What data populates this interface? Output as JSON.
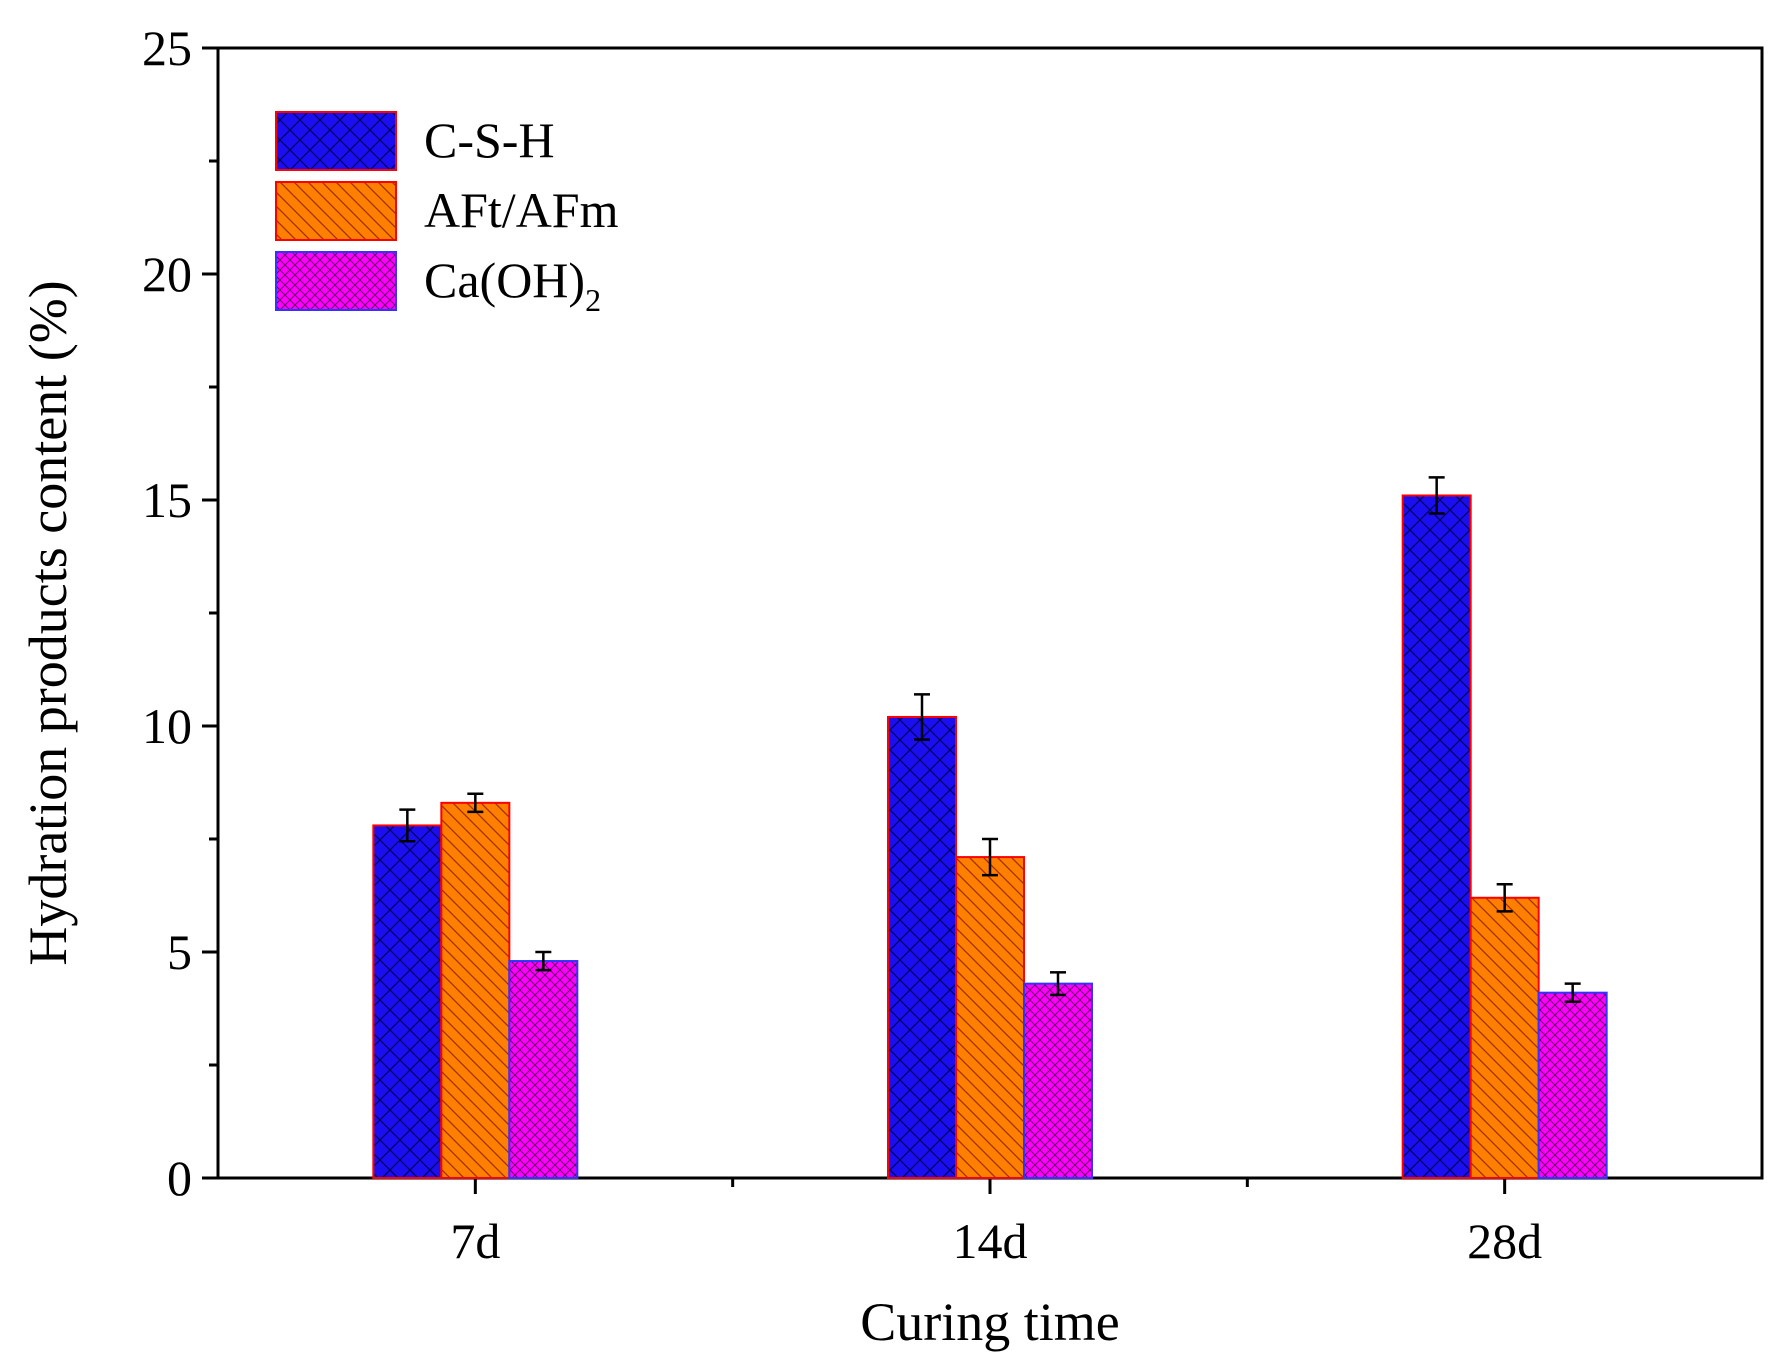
{
  "chart_data": {
    "type": "bar",
    "title": "",
    "xlabel": "Curing time",
    "ylabel": "Hydration products content (%)",
    "ylim": [
      0,
      25
    ],
    "yticks": [
      "0",
      "5",
      "10",
      "15",
      "20",
      "25"
    ],
    "categories": [
      "7d",
      "14d",
      "28d"
    ],
    "series": [
      {
        "name": "C-S-H",
        "values": [
          7.8,
          10.2,
          15.1
        ],
        "errors": [
          0.35,
          0.5,
          0.4
        ],
        "color": "#1b0ff0",
        "stroke": "#ff0000"
      },
      {
        "name": "AFt/AFm",
        "values": [
          8.3,
          7.1,
          6.2
        ],
        "errors": [
          0.2,
          0.4,
          0.3
        ],
        "color": "#ff7f00",
        "stroke": "#ff0000"
      },
      {
        "name": "Ca(OH)",
        "subscript": "2",
        "values": [
          4.8,
          4.3,
          4.1
        ],
        "errors": [
          0.2,
          0.25,
          0.2
        ],
        "color": "#ff00ff",
        "stroke": "#3333ff"
      }
    ],
    "legend_position": "top-left",
    "grid": false
  }
}
